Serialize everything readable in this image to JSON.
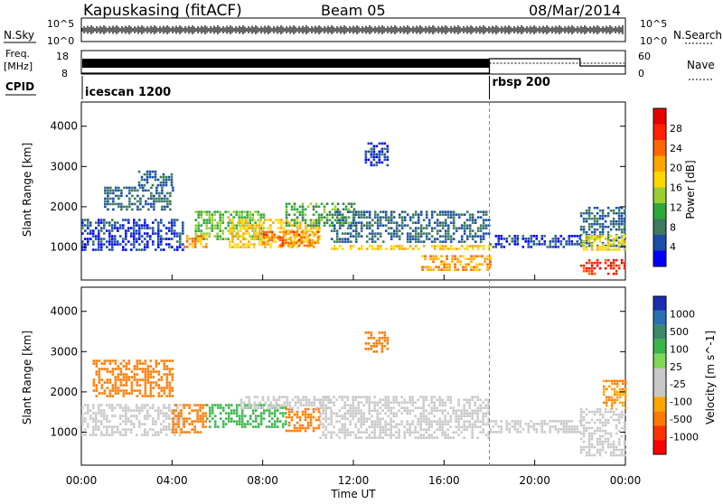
{
  "header": {
    "station": "Kapuskasing (fitACF)",
    "beam": "Beam 05",
    "date": "08/Mar/2014"
  },
  "top_labels": {
    "nsky": "N.Sky",
    "nsearch": "N.Search",
    "nave": "Nave",
    "freq": "Freq.",
    "freq_unit": "[MHz]",
    "cpid": "CPID",
    "noise_tick_hi": "10^5",
    "noise_tick_lo": "10^0",
    "freq_tick_hi": "18",
    "freq_tick_lo": "8",
    "nave_tick_hi": "60",
    "nave_tick_lo": "0"
  },
  "cpid_segments": [
    {
      "label": "icescan 1200",
      "start_hour": 0
    },
    {
      "label": "rbsp 200",
      "start_hour": 18
    }
  ],
  "x_axis": {
    "label": "Time UT",
    "ticks": [
      "00:00",
      "04:00",
      "08:00",
      "12:00",
      "16:00",
      "20:00",
      "00:00"
    ]
  },
  "power_panel": {
    "ylabel": "Slant Range [km]",
    "yticks": [
      "1000",
      "2000",
      "3000",
      "4000"
    ],
    "colorbar_label": "Power [dB]",
    "colorbar_ticks": [
      "4",
      "8",
      "12",
      "16",
      "20",
      "24",
      "28"
    ],
    "colorbar_colors": [
      "#0000ff",
      "#1a4ea8",
      "#3d7a5e",
      "#2ea83a",
      "#9acd32",
      "#ffd700",
      "#ffa500",
      "#ff6600",
      "#ff2200",
      "#e60000"
    ]
  },
  "velocity_panel": {
    "ylabel": "Slant Range [km]",
    "yticks": [
      "1000",
      "2000",
      "3000",
      "4000"
    ],
    "colorbar_label": "Velocity [m s^-1]",
    "colorbar_ticks": [
      "1000",
      "500",
      "100",
      "25",
      "-25",
      "-100",
      "-500",
      "-1000"
    ],
    "colorbar_colors": [
      "#1a2fb0",
      "#2a6fb0",
      "#3a8a6a",
      "#39b54a",
      "#7ed957",
      "#c8c8c8",
      "#c8c8c8",
      "#ffa500",
      "#ff7a00",
      "#ff3300",
      "#ff0000"
    ]
  },
  "chart_data": {
    "type": "heatmap",
    "title": "Kapuskasing (fitACF)",
    "xlabel": "Time UT",
    "ylabel": "Slant Range [km]",
    "xlim": [
      0,
      24
    ],
    "ylim": [
      180,
      4600
    ],
    "cpid_change_hour": 18,
    "power_regions": [
      {
        "t0": 0.0,
        "t1": 4.5,
        "r0": 900,
        "r1": 1700,
        "value": 6
      },
      {
        "t0": 1.0,
        "t1": 4.0,
        "r0": 1900,
        "r1": 2500,
        "value": 8
      },
      {
        "t0": 2.5,
        "t1": 4.0,
        "r0": 2500,
        "r1": 2900,
        "value": 8
      },
      {
        "t0": 5.0,
        "t1": 8.0,
        "r0": 1200,
        "r1": 1900,
        "value": 14
      },
      {
        "t0": 6.5,
        "t1": 10.5,
        "r0": 1000,
        "r1": 1700,
        "value": 20
      },
      {
        "t0": 8.0,
        "t1": 10.5,
        "r0": 1050,
        "r1": 1400,
        "value": 24
      },
      {
        "t0": 4.5,
        "t1": 5.5,
        "r0": 1000,
        "r1": 1300,
        "value": 22
      },
      {
        "t0": 9.0,
        "t1": 12.0,
        "r0": 1500,
        "r1": 2100,
        "value": 12
      },
      {
        "t0": 11.0,
        "t1": 18.0,
        "r0": 1100,
        "r1": 1900,
        "value": 8
      },
      {
        "t0": 11.0,
        "t1": 18.0,
        "r0": 950,
        "r1": 1050,
        "value": 20
      },
      {
        "t0": 15.0,
        "t1": 18.0,
        "r0": 400,
        "r1": 800,
        "value": 22
      },
      {
        "t0": 18.0,
        "t1": 22.0,
        "r0": 1000,
        "r1": 1300,
        "value": 6
      },
      {
        "t0": 22.0,
        "t1": 24.0,
        "r0": 1000,
        "r1": 2000,
        "value": 8
      },
      {
        "t0": 22.0,
        "t1": 24.0,
        "r0": 900,
        "r1": 1300,
        "value": 18
      },
      {
        "t0": 22.0,
        "t1": 24.0,
        "r0": 350,
        "r1": 700,
        "value": 28
      },
      {
        "t0": 12.5,
        "t1": 13.5,
        "r0": 3000,
        "r1": 3600,
        "value": 6
      }
    ],
    "velocity_regions": [
      {
        "t0": 0.0,
        "t1": 4.5,
        "r0": 900,
        "r1": 1700,
        "value": 0
      },
      {
        "t0": 0.5,
        "t1": 4.0,
        "r0": 1900,
        "r1": 2800,
        "value": -200
      },
      {
        "t0": 4.0,
        "t1": 5.5,
        "r0": 1000,
        "r1": 1700,
        "value": -150
      },
      {
        "t0": 5.5,
        "t1": 9.0,
        "r0": 1100,
        "r1": 1700,
        "value": 150
      },
      {
        "t0": 9.0,
        "t1": 10.5,
        "r0": 1000,
        "r1": 1600,
        "value": -150
      },
      {
        "t0": 7.0,
        "t1": 11.0,
        "r0": 1600,
        "r1": 1900,
        "value": 0
      },
      {
        "t0": 10.5,
        "t1": 18.0,
        "r0": 850,
        "r1": 1900,
        "value": 0
      },
      {
        "t0": 12.5,
        "t1": 13.5,
        "r0": 3000,
        "r1": 3500,
        "value": -200
      },
      {
        "t0": 18.0,
        "t1": 22.0,
        "r0": 1000,
        "r1": 1300,
        "value": 0
      },
      {
        "t0": 22.0,
        "t1": 24.0,
        "r0": 400,
        "r1": 1600,
        "value": 0
      },
      {
        "t0": 23.0,
        "t1": 24.0,
        "r0": 1600,
        "r1": 2300,
        "value": -100
      }
    ],
    "nave": [
      {
        "t0": 0,
        "t1": 18,
        "value": 0
      },
      {
        "t0": 18,
        "t1": 22,
        "value": 40
      },
      {
        "t0": 22,
        "t1": 24,
        "value": 20
      }
    ]
  }
}
